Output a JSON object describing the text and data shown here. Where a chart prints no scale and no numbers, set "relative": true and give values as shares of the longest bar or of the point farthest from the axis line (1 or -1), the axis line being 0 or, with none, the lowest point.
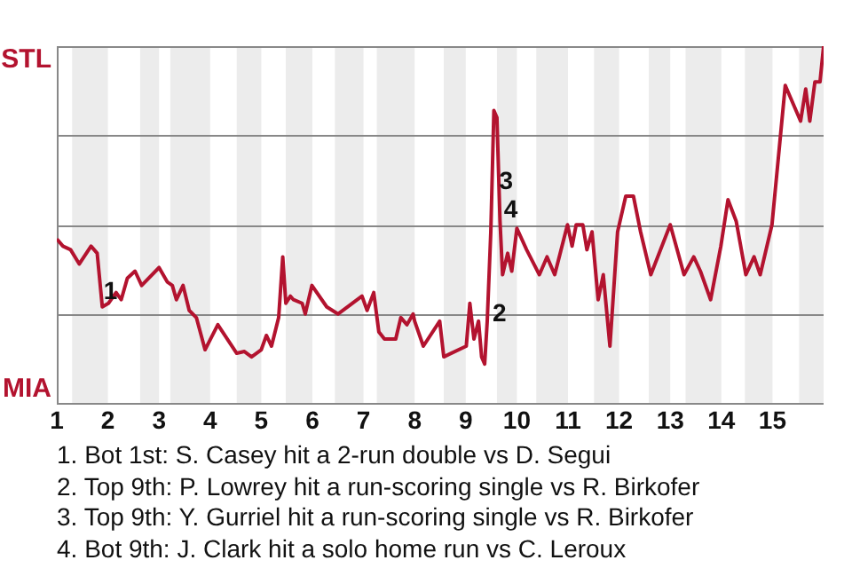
{
  "chart_data": {
    "type": "line",
    "relative": true,
    "x": [
      1,
      1.12,
      1.27,
      1.44,
      1.67,
      1.79,
      1.89,
      2.01,
      2.16,
      2.26,
      2.38,
      2.53,
      2.66,
      3,
      3.16,
      3.26,
      3.34,
      3.47,
      3.59,
      3.73,
      3.9,
      4.15,
      4.52,
      4.67,
      4.81,
      5,
      5.1,
      5.2,
      5.34,
      5.42,
      5.48,
      5.57,
      5.63,
      5.8,
      5.86,
      5.99,
      6.28,
      6.5,
      6.97,
      7.07,
      7.2,
      7.3,
      7.41,
      7.63,
      7.73,
      7.85,
      7.97,
      8,
      8.17,
      8.49,
      8.57,
      9.01,
      9.08,
      9.16,
      9.25,
      9.31,
      9.37,
      9.42,
      9.49,
      9.55,
      9.61,
      9.67,
      9.72,
      9.82,
      9.9,
      10,
      10.19,
      10.44,
      10.59,
      10.74,
      10.99,
      11.08,
      11.16,
      11.29,
      11.37,
      11.47,
      11.59,
      11.69,
      11.82,
      11.97,
      12.13,
      12.28,
      12.42,
      12.62,
      13,
      13.27,
      13.46,
      13.59,
      13.79,
      13.99,
      14.13,
      14.29,
      14.48,
      14.64,
      14.76,
      14.99,
      15.25,
      15.55,
      15.65,
      15.73,
      15.83,
      15.93,
      16
    ],
    "series": [
      {
        "color": "#b3132f",
        "values": [
          0.46,
          0.44,
          0.43,
          0.39,
          0.44,
          0.42,
          0.27,
          0.28,
          0.31,
          0.29,
          0.35,
          0.37,
          0.33,
          0.38,
          0.34,
          0.33,
          0.29,
          0.33,
          0.26,
          0.24,
          0.15,
          0.22,
          0.14,
          0.145,
          0.13,
          0.15,
          0.19,
          0.16,
          0.24,
          0.41,
          0.28,
          0.3,
          0.29,
          0.28,
          0.25,
          0.33,
          0.27,
          0.25,
          0.3,
          0.26,
          0.31,
          0.2,
          0.18,
          0.18,
          0.24,
          0.22,
          0.25,
          0.23,
          0.16,
          0.23,
          0.13,
          0.16,
          0.28,
          0.18,
          0.23,
          0.13,
          0.11,
          0.23,
          0.48,
          0.82,
          0.8,
          0.51,
          0.36,
          0.42,
          0.37,
          0.49,
          0.43,
          0.36,
          0.41,
          0.36,
          0.5,
          0.44,
          0.5,
          0.5,
          0.43,
          0.48,
          0.29,
          0.36,
          0.16,
          0.48,
          0.58,
          0.58,
          0.48,
          0.36,
          0.5,
          0.36,
          0.41,
          0.37,
          0.29,
          0.44,
          0.57,
          0.51,
          0.36,
          0.41,
          0.36,
          0.5,
          0.89,
          0.79,
          0.88,
          0.79,
          0.9,
          0.9,
          1.0
        ]
      }
    ],
    "xlim": [
      1,
      16
    ],
    "xticks": [
      1,
      2,
      3,
      4,
      5,
      6,
      7,
      8,
      9,
      10,
      11,
      12,
      13,
      14,
      15
    ],
    "legend": false,
    "marker": "none",
    "line_style": "solid",
    "ref_lines": [
      {
        "axis": "y",
        "value": 0.25,
        "color": "#888888"
      },
      {
        "axis": "y",
        "value": 0.5,
        "color": "#888888"
      },
      {
        "axis": "y",
        "value": 0.75,
        "color": "#888888"
      },
      {
        "axis": "y",
        "value": 1,
        "color": "#888888"
      }
    ],
    "bands": [
      {
        "axis": "x",
        "from": 1.3,
        "to": 2,
        "color": "#ececec"
      },
      {
        "axis": "x",
        "from": 2.63,
        "to": 3,
        "color": "#ececec"
      },
      {
        "axis": "x",
        "from": 3.22,
        "to": 4,
        "color": "#ececec"
      },
      {
        "axis": "x",
        "from": 4.52,
        "to": 5,
        "color": "#ececec"
      },
      {
        "axis": "x",
        "from": 5.48,
        "to": 6,
        "color": "#ececec"
      },
      {
        "axis": "x",
        "from": 6.44,
        "to": 7,
        "color": "#ececec"
      },
      {
        "axis": "x",
        "from": 7.26,
        "to": 8,
        "color": "#ececec"
      },
      {
        "axis": "x",
        "from": 8.57,
        "to": 9,
        "color": "#ececec"
      },
      {
        "axis": "x",
        "from": 9.61,
        "to": 10,
        "color": "#ececec"
      },
      {
        "axis": "x",
        "from": 10.38,
        "to": 11,
        "color": "#ececec"
      },
      {
        "axis": "x",
        "from": 11.51,
        "to": 12,
        "color": "#ececec"
      },
      {
        "axis": "x",
        "from": 12.58,
        "to": 13,
        "color": "#ececec"
      },
      {
        "axis": "x",
        "from": 13.3,
        "to": 14,
        "color": "#ececec"
      },
      {
        "axis": "x",
        "from": 14.46,
        "to": 15,
        "color": "#ececec"
      },
      {
        "axis": "x",
        "from": 15.52,
        "to": 16,
        "color": "#ececec"
      }
    ],
    "annotations": [
      "STL",
      "MIA",
      {
        "text": "1",
        "x": 2.05,
        "y": 0.31
      },
      {
        "text": "2",
        "x": 9.66,
        "y": 0.25
      },
      {
        "text": "3",
        "x": 9.79,
        "y": 0.62
      },
      {
        "text": "4",
        "x": 9.88,
        "y": 0.54
      },
      "1. Bot 1st: S. Casey hit a 2-run double vs D. Segui",
      "2. Top 9th: P. Lowrey hit a run-scoring single vs R. Birkofer",
      "3. Top 9th: Y. Gurriel hit a run-scoring single vs R. Birkofer",
      "4. Bot 9th: J. Clark hit a solo home run vs C. Leroux"
    ]
  }
}
